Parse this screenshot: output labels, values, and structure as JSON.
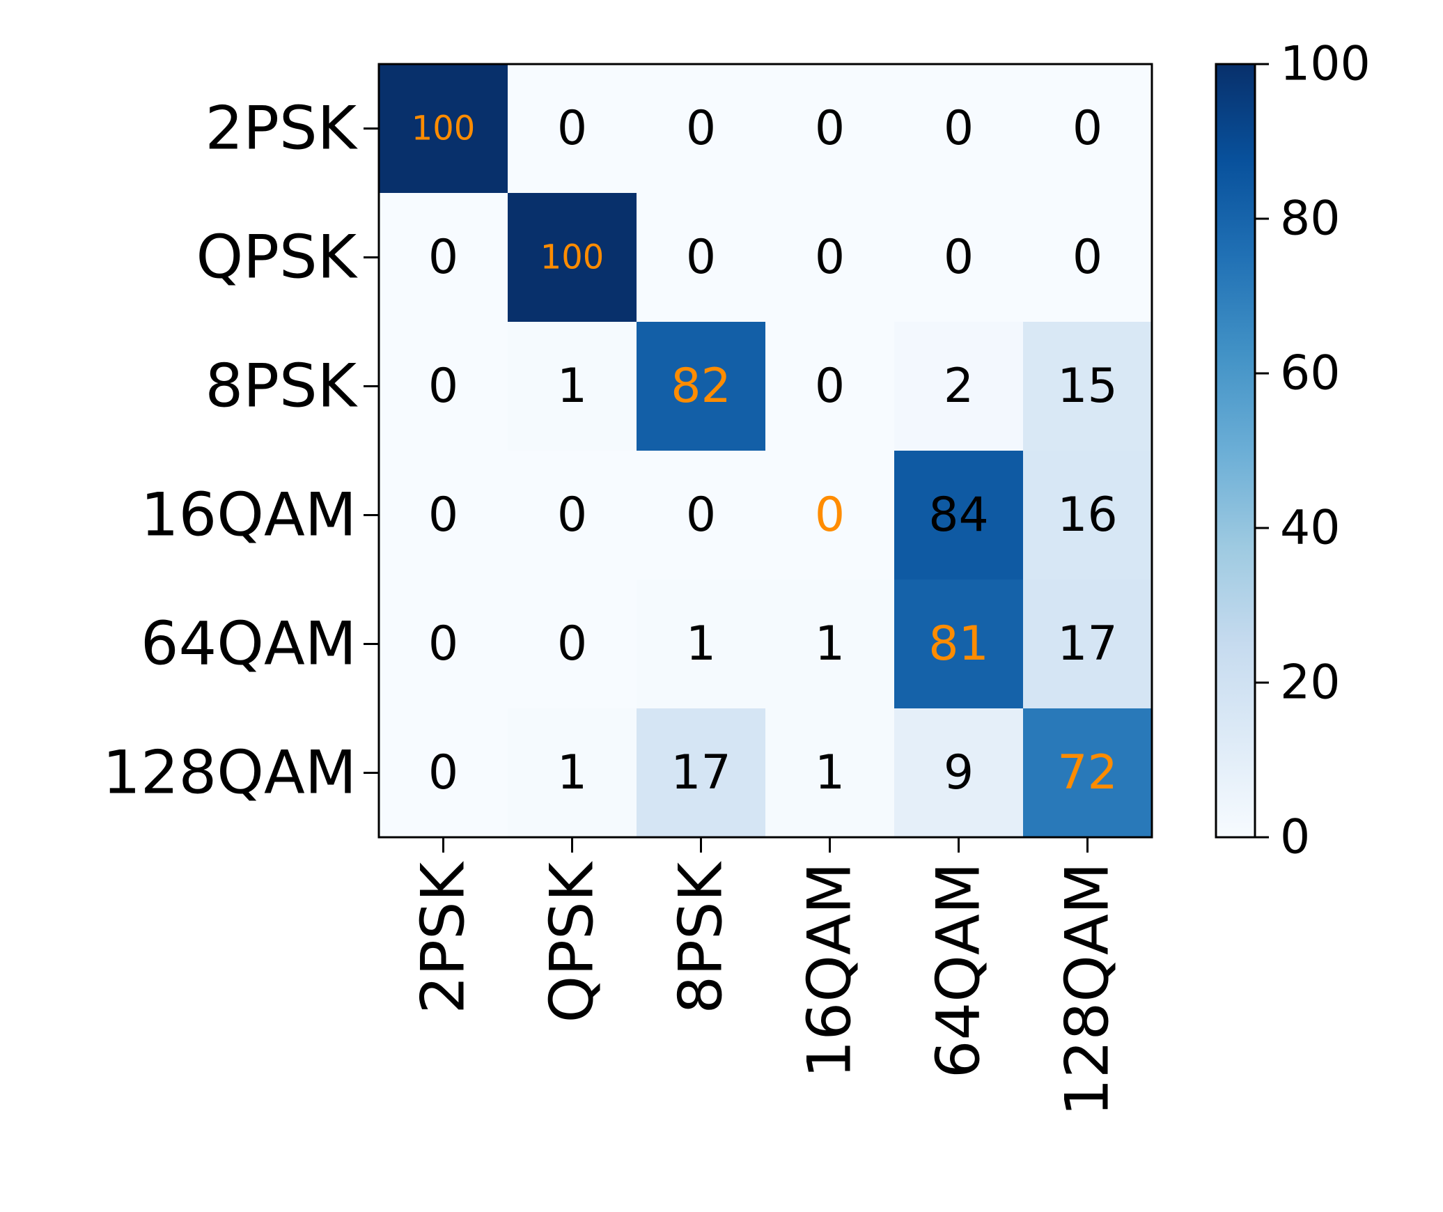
{
  "chart_data": {
    "type": "heatmap",
    "title": "",
    "xlabel": "",
    "ylabel": "",
    "x_categories": [
      "2PSK",
      "QPSK",
      "8PSK",
      "16QAM",
      "64QAM",
      "128QAM"
    ],
    "y_categories": [
      "2PSK",
      "QPSK",
      "8PSK",
      "16QAM",
      "64QAM",
      "128QAM"
    ],
    "values": [
      [
        100,
        0,
        0,
        0,
        0,
        0
      ],
      [
        0,
        100,
        0,
        0,
        0,
        0
      ],
      [
        0,
        1,
        82,
        0,
        2,
        15
      ],
      [
        0,
        0,
        0,
        0,
        84,
        16
      ],
      [
        0,
        0,
        1,
        1,
        81,
        17
      ],
      [
        0,
        1,
        17,
        1,
        9,
        72
      ]
    ],
    "color_range": [
      0,
      100
    ],
    "colormap": "Blues",
    "colorbar": {
      "ticks": [
        0,
        20,
        40,
        60,
        80,
        100
      ],
      "labels": [
        "0",
        "20",
        "40",
        "60",
        "80",
        "100"
      ]
    },
    "highlight_color": "#ff8c00",
    "text_color": "#000000",
    "grid": false,
    "legend": "colorbar-right"
  }
}
